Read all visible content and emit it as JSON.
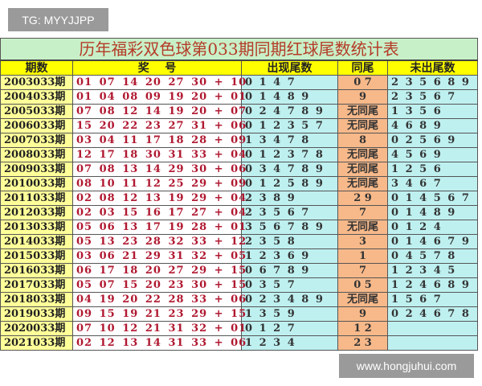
{
  "watermark_top": "TG: MYYJJPP",
  "watermark_bottom": "www.hongjuhui.com",
  "title": "历年福彩双色球第033期同期红球尾数统计表",
  "headers": [
    "期数",
    "奖    号",
    "出现尾数",
    "同尾",
    "未出尾数"
  ],
  "rows": [
    [
      "2003033期",
      "01 07 14 20 27 30 + 10",
      "0 1 4 7",
      "0 7",
      "2 3 5 6 8 9"
    ],
    [
      "2004033期",
      "01 04 08 09 19 20 + 01",
      "0 1 4 8 9",
      "9",
      "2 3 5 6 7"
    ],
    [
      "2005033期",
      "07 08 12 14 19 20 + 07",
      "0 2 4 7 8 9",
      "无同尾",
      "1 3 5 6"
    ],
    [
      "2006033期",
      "15 20 22 23 27 31 + 06",
      "0 1 2 3 5 7",
      "无同尾",
      "4 6 8 9"
    ],
    [
      "2007033期",
      "03 04 11 17 18 28 + 09",
      "1 3 4 7 8",
      "8",
      "0 2 5 6 9"
    ],
    [
      "2008033期",
      "12 17 18 30 31 33 + 04",
      "0 1 2 3 7 8",
      "无同尾",
      "4 5 6 9"
    ],
    [
      "2009033期",
      "07 08 13 14 29 30 + 06",
      "0 3 4 7 8 9",
      "无同尾",
      "1 2 5 6"
    ],
    [
      "2010033期",
      "08 10 11 12 25 29 + 09",
      "0 1 2 5 8 9",
      "无同尾",
      "3 4 6 7"
    ],
    [
      "2011033期",
      "02 08 12 13 19 29 + 04",
      "2 3 8 9",
      "2 9",
      "0 1 4 5 6 7"
    ],
    [
      "2012033期",
      "02 03 15 16 17 27 + 04",
      "2 3 5 6 7",
      "7",
      "0 1 4 8 9"
    ],
    [
      "2013033期",
      "05 06 13 17 19 28 + 01",
      "3 5 6 7 8 9",
      "无同尾",
      "0 1 2 4"
    ],
    [
      "2014033期",
      "05 13 23 28 32 33 + 12",
      "2 3 5 8",
      "3",
      "0 1 4 6 7 9"
    ],
    [
      "2015033期",
      "03 06 21 29 31 32 + 05",
      "1 2 3 6 9",
      "1",
      "0 4 5 7 8"
    ],
    [
      "2016033期",
      "06 17 18 20 27 29 + 15",
      "0 6 7 8 9",
      "7",
      "1 2 3 4 5"
    ],
    [
      "2017033期",
      "05 07 15 20 23 30 + 15",
      "0 3 5 7",
      "0 5",
      "1 2 4 6 8 9"
    ],
    [
      "2018033期",
      "04 19 20 22 28 33 + 06",
      "0 2 3 4 8 9",
      "无同尾",
      "1 5 6 7"
    ],
    [
      "2019033期",
      "09 15 19 21 23 29 + 15",
      "1 3 5 9",
      "9",
      "0 2 4 6 7 8"
    ],
    [
      "2020033期",
      "07 10 12 21 31 32 + 01",
      "0 1 2 7",
      "1 2",
      ""
    ],
    [
      "2021033期",
      "02 12 13 14 31 33 + 06",
      "1 2 3 4",
      "2 3",
      ""
    ]
  ]
}
